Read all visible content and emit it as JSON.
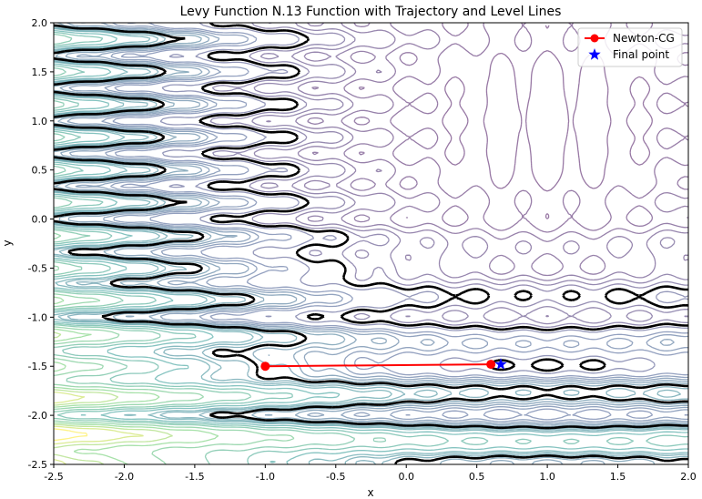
{
  "chart_data": {
    "type": "line",
    "title": "Levy Function N.13 Function with Trajectory and Level Lines",
    "xlabel": "x",
    "ylabel": "y",
    "xlim": [
      -2.5,
      2.0
    ],
    "ylim": [
      -2.5,
      2.0
    ],
    "x_ticks": [
      "-2.5",
      "-2.0",
      "-1.5",
      "-1.0",
      "-0.5",
      "0.0",
      "0.5",
      "1.0",
      "1.5",
      "2.0"
    ],
    "y_ticks": [
      "-2.5",
      "-2.0",
      "-1.5",
      "-1.0",
      "-0.5",
      "0.0",
      "0.5",
      "1.0",
      "1.5",
      "2.0"
    ],
    "grid": false,
    "legend_position": "top-right",
    "series": [
      {
        "name": "Newton-CG",
        "color": "#ff0000",
        "marker": "circle",
        "x": [
          -1.0,
          0.6
        ],
        "y": [
          -1.5,
          -1.48
        ]
      },
      {
        "name": "Final point",
        "color": "#0000ff",
        "marker": "star",
        "x": [
          0.67
        ],
        "y": [
          -1.48
        ]
      }
    ],
    "contour_colormap": "viridis",
    "highlighted_contour_color": "#000000"
  }
}
